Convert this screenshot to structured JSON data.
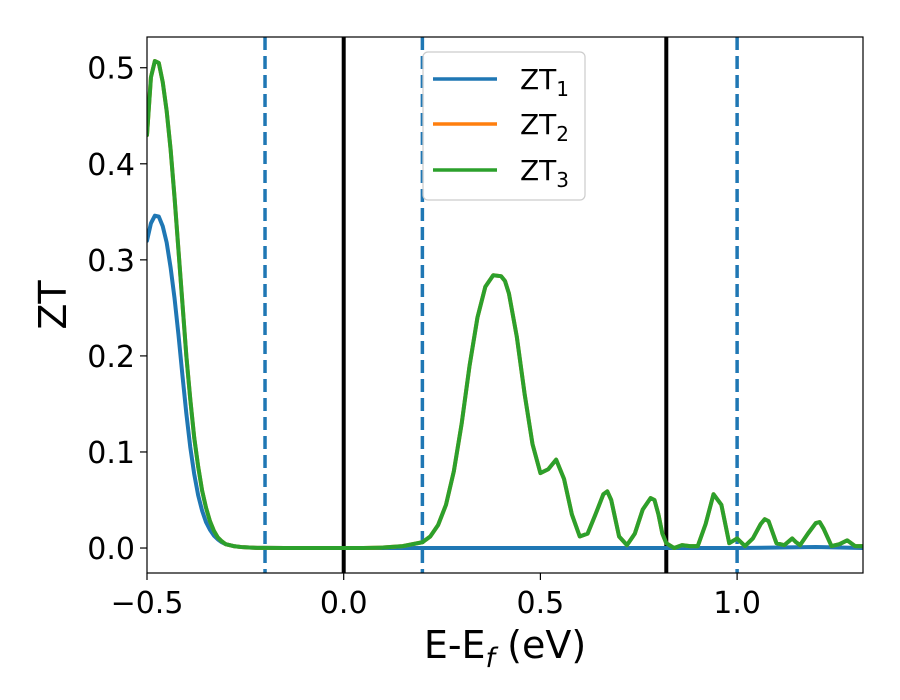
{
  "chart_data": {
    "type": "line",
    "xlabel": "E-E",
    "xlabel_sub": "f",
    "xlabel_suffix": " (eV)",
    "ylabel": "ZT",
    "xlim": [
      -0.5,
      1.32
    ],
    "ylim": [
      -0.026,
      0.532
    ],
    "xticks": [
      -0.5,
      0.0,
      0.5,
      1.0
    ],
    "xtick_labels": [
      "−0.5",
      "0.0",
      "0.5",
      "1.0"
    ],
    "yticks": [
      0.0,
      0.1,
      0.2,
      0.3,
      0.4,
      0.5
    ],
    "ytick_labels": [
      "0.0",
      "0.1",
      "0.2",
      "0.3",
      "0.4",
      "0.5"
    ],
    "grid": false,
    "legend": {
      "placement": "top-center",
      "entries": [
        {
          "base": "ZT",
          "sub": "1",
          "color": "#1f77b4"
        },
        {
          "base": "ZT",
          "sub": "2",
          "color": "#ff7f0e"
        },
        {
          "base": "ZT",
          "sub": "3",
          "color": "#2ca02c"
        }
      ]
    },
    "vlines": [
      {
        "x": -0.2,
        "style": "dashed",
        "color": "#1f77b4"
      },
      {
        "x": 0.0,
        "style": "solid",
        "color": "#000000"
      },
      {
        "x": 0.2,
        "style": "dashed",
        "color": "#1f77b4"
      },
      {
        "x": 0.82,
        "style": "solid",
        "color": "#000000"
      },
      {
        "x": 1.0,
        "style": "dashed",
        "color": "#1f77b4"
      }
    ],
    "series": [
      {
        "color": "#1f77b4",
        "x": [
          -0.5,
          -0.49,
          -0.48,
          -0.47,
          -0.46,
          -0.45,
          -0.44,
          -0.43,
          -0.42,
          -0.41,
          -0.4,
          -0.39,
          -0.38,
          -0.37,
          -0.36,
          -0.35,
          -0.34,
          -0.33,
          -0.32,
          -0.31,
          -0.3,
          -0.28,
          -0.26,
          -0.24,
          -0.22,
          -0.2,
          -0.15,
          -0.1,
          0.0,
          0.2,
          0.4,
          0.6,
          0.8,
          1.0,
          1.2,
          1.32
        ],
        "y": [
          0.32,
          0.338,
          0.346,
          0.345,
          0.335,
          0.318,
          0.292,
          0.26,
          0.222,
          0.18,
          0.14,
          0.105,
          0.077,
          0.055,
          0.039,
          0.027,
          0.019,
          0.013,
          0.009,
          0.006,
          0.004,
          0.002,
          0.001,
          0.0005,
          0.0002,
          0.0001,
          0.0,
          0.0,
          0.0,
          0.0,
          0.0,
          0.0,
          0.0,
          0.0,
          0.001,
          0.0
        ]
      },
      {
        "color": "#ff7f0e",
        "x": [
          -0.5,
          -0.49,
          -0.48,
          -0.47,
          -0.46,
          -0.45,
          -0.44,
          -0.43,
          -0.42,
          -0.41,
          -0.4,
          -0.39,
          -0.38,
          -0.37,
          -0.36,
          -0.35,
          -0.34,
          -0.33,
          -0.32,
          -0.31,
          -0.3,
          -0.28,
          -0.26,
          -0.24,
          -0.22,
          -0.2,
          -0.15,
          -0.1,
          -0.05,
          0.0,
          0.05,
          0.1,
          0.15,
          0.2,
          0.22,
          0.24,
          0.26,
          0.28,
          0.3,
          0.32,
          0.34,
          0.36,
          0.38,
          0.4,
          0.41,
          0.42,
          0.44,
          0.46,
          0.48,
          0.5,
          0.52,
          0.54,
          0.56,
          0.58,
          0.6,
          0.62,
          0.64,
          0.66,
          0.67,
          0.68,
          0.7,
          0.72,
          0.74,
          0.76,
          0.78,
          0.79,
          0.8,
          0.81,
          0.82,
          0.84,
          0.86,
          0.88,
          0.9,
          0.92,
          0.94,
          0.96,
          0.98,
          1.0,
          1.02,
          1.04,
          1.06,
          1.07,
          1.08,
          1.1,
          1.12,
          1.14,
          1.15,
          1.16,
          1.18,
          1.2,
          1.21,
          1.22,
          1.24,
          1.26,
          1.28,
          1.3,
          1.32
        ],
        "y": [
          0.43,
          0.49,
          0.507,
          0.505,
          0.485,
          0.455,
          0.415,
          0.365,
          0.31,
          0.255,
          0.2,
          0.155,
          0.115,
          0.085,
          0.06,
          0.042,
          0.028,
          0.018,
          0.011,
          0.007,
          0.004,
          0.002,
          0.001,
          0.0005,
          0.0002,
          0.0001,
          0.0,
          0.0,
          0.0,
          0.0,
          0.0,
          0.0005,
          0.002,
          0.006,
          0.012,
          0.024,
          0.045,
          0.08,
          0.13,
          0.19,
          0.24,
          0.272,
          0.284,
          0.283,
          0.278,
          0.265,
          0.22,
          0.16,
          0.108,
          0.078,
          0.082,
          0.092,
          0.072,
          0.035,
          0.012,
          0.015,
          0.035,
          0.056,
          0.059,
          0.05,
          0.012,
          0.003,
          0.015,
          0.04,
          0.052,
          0.05,
          0.035,
          0.015,
          0.005,
          0.0,
          0.003,
          0.002,
          0.002,
          0.025,
          0.056,
          0.045,
          0.005,
          0.01,
          0.002,
          0.01,
          0.025,
          0.03,
          0.028,
          0.005,
          0.003,
          0.01,
          0.006,
          0.003,
          0.015,
          0.026,
          0.027,
          0.02,
          0.002,
          0.004,
          0.008,
          0.002,
          0.002
        ]
      },
      {
        "color": "#2ca02c",
        "x": [
          -0.5,
          -0.49,
          -0.48,
          -0.47,
          -0.46,
          -0.45,
          -0.44,
          -0.43,
          -0.42,
          -0.41,
          -0.4,
          -0.39,
          -0.38,
          -0.37,
          -0.36,
          -0.35,
          -0.34,
          -0.33,
          -0.32,
          -0.31,
          -0.3,
          -0.28,
          -0.26,
          -0.24,
          -0.22,
          -0.2,
          -0.15,
          -0.1,
          -0.05,
          0.0,
          0.05,
          0.1,
          0.15,
          0.2,
          0.22,
          0.24,
          0.26,
          0.28,
          0.3,
          0.32,
          0.34,
          0.36,
          0.38,
          0.4,
          0.41,
          0.42,
          0.44,
          0.46,
          0.48,
          0.5,
          0.52,
          0.54,
          0.56,
          0.58,
          0.6,
          0.62,
          0.64,
          0.66,
          0.67,
          0.68,
          0.7,
          0.72,
          0.74,
          0.76,
          0.78,
          0.79,
          0.8,
          0.81,
          0.82,
          0.84,
          0.86,
          0.88,
          0.9,
          0.92,
          0.94,
          0.96,
          0.98,
          1.0,
          1.02,
          1.04,
          1.06,
          1.07,
          1.08,
          1.1,
          1.12,
          1.14,
          1.15,
          1.16,
          1.18,
          1.2,
          1.21,
          1.22,
          1.24,
          1.26,
          1.28,
          1.3,
          1.32
        ],
        "y": [
          0.43,
          0.49,
          0.507,
          0.505,
          0.485,
          0.455,
          0.415,
          0.365,
          0.31,
          0.255,
          0.2,
          0.155,
          0.115,
          0.085,
          0.06,
          0.042,
          0.028,
          0.018,
          0.011,
          0.007,
          0.004,
          0.002,
          0.001,
          0.0005,
          0.0002,
          0.0001,
          0.0,
          0.0,
          0.0,
          0.0,
          0.0,
          0.0005,
          0.002,
          0.006,
          0.012,
          0.024,
          0.045,
          0.08,
          0.13,
          0.19,
          0.24,
          0.272,
          0.284,
          0.283,
          0.278,
          0.265,
          0.22,
          0.16,
          0.108,
          0.078,
          0.082,
          0.092,
          0.072,
          0.035,
          0.012,
          0.015,
          0.035,
          0.056,
          0.059,
          0.05,
          0.012,
          0.003,
          0.015,
          0.04,
          0.052,
          0.05,
          0.035,
          0.015,
          0.005,
          0.0,
          0.003,
          0.002,
          0.002,
          0.025,
          0.056,
          0.045,
          0.005,
          0.01,
          0.002,
          0.01,
          0.025,
          0.03,
          0.028,
          0.005,
          0.003,
          0.01,
          0.006,
          0.003,
          0.015,
          0.026,
          0.027,
          0.02,
          0.002,
          0.004,
          0.008,
          0.002,
          0.002
        ]
      }
    ]
  }
}
